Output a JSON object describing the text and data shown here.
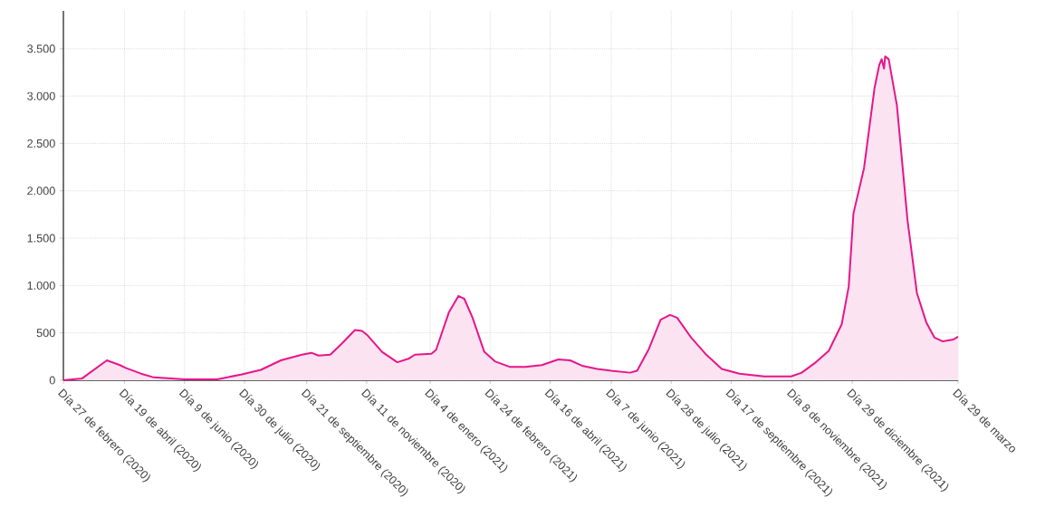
{
  "chart_data": {
    "type": "area",
    "x": [
      "2020-02-27",
      "2020-03-14",
      "2020-04-04",
      "2020-04-15",
      "2020-04-20",
      "2020-05-03",
      "2020-05-14",
      "2020-06-09",
      "2020-07-07",
      "2020-07-27",
      "2020-08-13",
      "2020-08-30",
      "2020-09-17",
      "2020-09-25",
      "2020-10-01",
      "2020-10-11",
      "2020-10-21",
      "2020-11-01",
      "2020-11-07",
      "2020-11-12",
      "2020-11-24",
      "2020-12-07",
      "2020-12-17",
      "2020-12-22",
      "2021-01-05",
      "2021-01-09",
      "2021-01-20",
      "2021-01-28",
      "2021-02-02",
      "2021-02-09",
      "2021-02-19",
      "2021-02-28",
      "2021-03-13",
      "2021-03-26",
      "2021-04-09",
      "2021-04-23",
      "2021-05-03",
      "2021-05-14",
      "2021-05-26",
      "2021-06-07",
      "2021-06-23",
      "2021-06-29",
      "2021-07-09",
      "2021-07-19",
      "2021-07-27",
      "2021-08-02",
      "2021-08-14",
      "2021-08-26",
      "2021-09-09",
      "2021-09-24",
      "2021-10-15",
      "2021-11-07",
      "2021-11-16",
      "2021-11-27",
      "2021-12-09",
      "2021-12-20",
      "2021-12-26",
      "2021-12-30",
      "2022-01-08",
      "2022-01-17",
      "2022-01-21",
      "2022-01-23",
      "2022-01-25",
      "2022-01-26",
      "2022-01-29",
      "2022-02-05",
      "2022-02-14",
      "2022-02-22",
      "2022-03-02",
      "2022-03-09",
      "2022-03-16",
      "2022-03-25",
      "2022-03-29"
    ],
    "series": [
      {
        "color": "#e6168a",
        "values": [
          0,
          20,
          210,
          160,
          130,
          70,
          30,
          10,
          10,
          60,
          110,
          210,
          270,
          290,
          260,
          270,
          390,
          530,
          520,
          470,
          300,
          190,
          230,
          270,
          280,
          320,
          720,
          890,
          860,
          660,
          300,
          200,
          140,
          140,
          160,
          220,
          210,
          150,
          120,
          100,
          80,
          100,
          330,
          640,
          690,
          660,
          450,
          280,
          120,
          70,
          40,
          40,
          80,
          180,
          310,
          590,
          990,
          1760,
          2240,
          3090,
          3330,
          3390,
          3290,
          3420,
          3390,
          2900,
          1690,
          920,
          610,
          450,
          410,
          430,
          460
        ]
      }
    ],
    "xlim": [
      "2020-02-27",
      "2022-03-29"
    ],
    "ylim": [
      0,
      3900
    ],
    "xticks": [
      {
        "value": "2020-02-27",
        "label": "Día 27 de febrero (2020)"
      },
      {
        "value": "2020-04-19",
        "label": "Día 19 de abril (2020)"
      },
      {
        "value": "2020-06-09",
        "label": "Día 9 de junio (2020)"
      },
      {
        "value": "2020-07-30",
        "label": "Día 30 de julio (2020)"
      },
      {
        "value": "2020-09-21",
        "label": "Día 21 de septiembre (2020)"
      },
      {
        "value": "2020-11-11",
        "label": "Día 11 de noviembre (2020)"
      },
      {
        "value": "2021-01-04",
        "label": "Día 4 de enero (2021)"
      },
      {
        "value": "2021-02-24",
        "label": "Día 24 de febrero (2021)"
      },
      {
        "value": "2021-04-16",
        "label": "Día 16 de abril (2021)"
      },
      {
        "value": "2021-06-07",
        "label": "Día 7 de junio (2021)"
      },
      {
        "value": "2021-07-28",
        "label": "Día 28 de julio (2021)"
      },
      {
        "value": "2021-09-17",
        "label": "Día 17 de septiembre (2021)"
      },
      {
        "value": "2021-11-08",
        "label": "Día 8 de noviembre (2021)"
      },
      {
        "value": "2021-12-29",
        "label": "Día 29 de diciembre (2021)"
      },
      {
        "value": "2022-03-29",
        "label": "Día 29 de marzo"
      }
    ],
    "yticks": [
      0,
      500,
      {
        "value": 1000,
        "label": "1.000"
      },
      {
        "value": 1500,
        "label": "1.500"
      },
      {
        "value": 2000,
        "label": "2.000"
      },
      {
        "value": 2500,
        "label": "2.500"
      },
      {
        "value": 3000,
        "label": "3.000"
      },
      {
        "value": 3500,
        "label": "3.500"
      }
    ],
    "grid": true
  }
}
